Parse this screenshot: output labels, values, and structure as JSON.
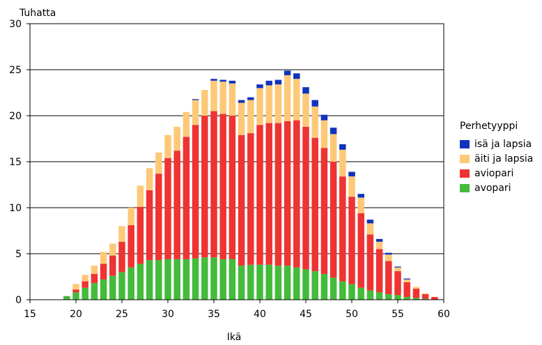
{
  "chart_data": {
    "type": "bar",
    "stacked": true,
    "ylabel": "Tuhatta",
    "xlabel": "Ikä",
    "xlim": [
      15,
      60
    ],
    "ylim": [
      0,
      30
    ],
    "xticks": [
      15,
      20,
      25,
      30,
      35,
      40,
      45,
      50,
      55,
      60
    ],
    "yticks": [
      0,
      5,
      10,
      15,
      20,
      25,
      30
    ],
    "grid": true,
    "legend_title": "Perhetyyppi",
    "legend_position": "right",
    "x": [
      19,
      20,
      21,
      22,
      23,
      24,
      25,
      26,
      27,
      28,
      29,
      30,
      31,
      32,
      33,
      34,
      35,
      36,
      37,
      38,
      39,
      40,
      41,
      42,
      43,
      44,
      45,
      46,
      47,
      48,
      49,
      50,
      51,
      52,
      53,
      54,
      55,
      56,
      57,
      58,
      59
    ],
    "series": [
      {
        "name": "avopari",
        "color": "#44bb3b",
        "values": [
          0.4,
          0.8,
          1.3,
          1.8,
          2.2,
          2.6,
          3.0,
          3.5,
          3.9,
          4.3,
          4.3,
          4.4,
          4.4,
          4.4,
          4.5,
          4.6,
          4.6,
          4.4,
          4.4,
          3.7,
          3.8,
          3.8,
          3.8,
          3.7,
          3.7,
          3.5,
          3.3,
          3.1,
          2.8,
          2.4,
          2.0,
          1.7,
          1.3,
          1.0,
          0.8,
          0.6,
          0.5,
          0.3,
          0.2,
          0.1,
          0.0
        ]
      },
      {
        "name": "aviopari",
        "color": "#ee3333",
        "values": [
          0.0,
          0.3,
          0.7,
          1.0,
          1.7,
          2.2,
          3.3,
          4.6,
          6.2,
          7.6,
          9.4,
          11.0,
          11.8,
          13.3,
          14.5,
          15.4,
          15.9,
          15.8,
          15.6,
          14.2,
          14.3,
          15.2,
          15.4,
          15.5,
          15.7,
          16.0,
          15.5,
          14.5,
          13.7,
          12.6,
          11.4,
          9.5,
          8.1,
          6.1,
          4.7,
          3.6,
          2.6,
          1.6,
          1.0,
          0.5,
          0.3
        ]
      },
      {
        "name": "äiti ja lapsia",
        "color": "#fdc978",
        "values": [
          0.0,
          0.6,
          0.7,
          0.9,
          1.3,
          1.3,
          1.7,
          1.9,
          2.3,
          2.4,
          2.3,
          2.5,
          2.6,
          2.7,
          2.7,
          2.8,
          3.3,
          3.5,
          3.5,
          3.5,
          3.6,
          4.0,
          4.1,
          4.2,
          5.0,
          4.5,
          3.6,
          3.4,
          3.0,
          3.0,
          2.9,
          2.2,
          1.7,
          1.2,
          0.8,
          0.7,
          0.4,
          0.3,
          0.2,
          0.1,
          0.0
        ]
      },
      {
        "name": "isä ja lapsia",
        "color": "#1133bb",
        "values": [
          0.0,
          0.0,
          0.0,
          0.0,
          0.0,
          0.0,
          0.0,
          0.0,
          0.0,
          0.0,
          0.0,
          0.0,
          0.0,
          0.0,
          0.1,
          0.0,
          0.2,
          0.2,
          0.3,
          0.3,
          0.3,
          0.4,
          0.5,
          0.5,
          0.5,
          0.6,
          0.7,
          0.7,
          0.6,
          0.7,
          0.6,
          0.5,
          0.4,
          0.4,
          0.3,
          0.2,
          0.1,
          0.1,
          0.0,
          0.0,
          0.0
        ]
      }
    ]
  }
}
